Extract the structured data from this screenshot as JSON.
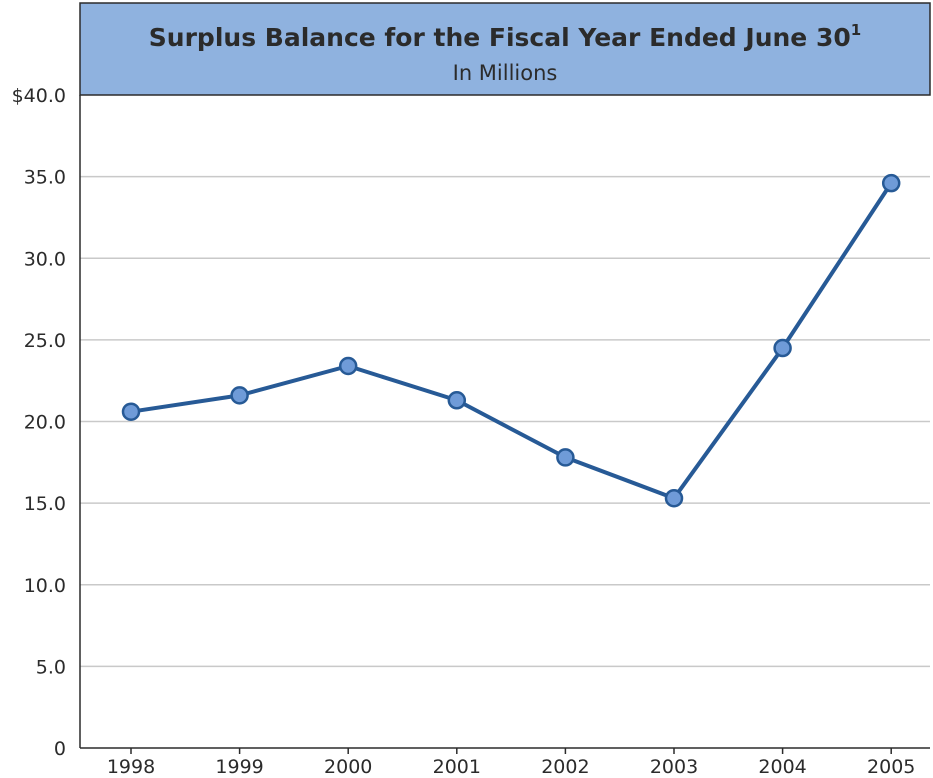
{
  "chart_data": {
    "type": "line",
    "title": "Surplus Balance for the Fiscal Year Ended June 30",
    "title_superscript": "1",
    "subtitle": "In Millions",
    "xlabel": "",
    "ylabel": "",
    "categories": [
      "1998",
      "1999",
      "2000",
      "2001",
      "2002",
      "2003",
      "2004",
      "2005"
    ],
    "series": [
      {
        "values": [
          20.6,
          21.6,
          23.4,
          21.3,
          17.8,
          15.3,
          24.5,
          34.6
        ]
      }
    ],
    "ylim": [
      0,
      40
    ],
    "y_ticks": [
      0,
      5,
      10,
      15,
      20,
      25,
      30,
      35,
      40
    ],
    "y_tick_labels": [
      "0",
      "5.0",
      "10.0",
      "15.0",
      "20.0",
      "25.0",
      "30.0",
      "35.0",
      "$40.0"
    ],
    "grid": true,
    "legend": "none",
    "colors": {
      "header_fill": "#8fb2df",
      "line": "#275a96",
      "marker": "#6f9bd8",
      "grid": "#c9c9c9"
    }
  }
}
